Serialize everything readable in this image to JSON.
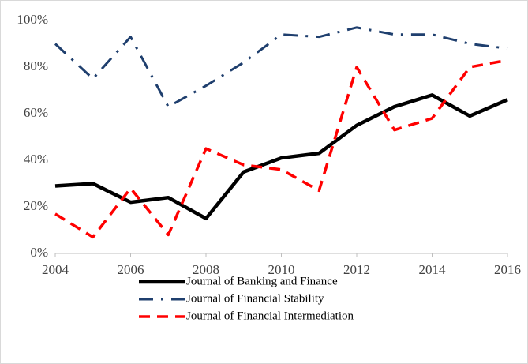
{
  "chart_data": {
    "type": "line",
    "x": [
      2004,
      2005,
      2006,
      2007,
      2008,
      2009,
      2010,
      2011,
      2012,
      2013,
      2014,
      2015,
      2016
    ],
    "series": [
      {
        "name": "Journal of Banking and Finance",
        "color": "#000000",
        "values": [
          29,
          30,
          22,
          24,
          15,
          35,
          41,
          43,
          55,
          63,
          68,
          59,
          66
        ]
      },
      {
        "name": "Journal of Financial Stability",
        "color": "#1f3f6e",
        "values": [
          90,
          75,
          93,
          63,
          72,
          82,
          94,
          93,
          97,
          94,
          94,
          90,
          88
        ]
      },
      {
        "name": "Journal of Financial Intermediation",
        "color": "#ff0000",
        "values": [
          17,
          7,
          28,
          8,
          45,
          38,
          36,
          27,
          80,
          53,
          58,
          80,
          83
        ]
      }
    ],
    "xlim": [
      2004,
      2016
    ],
    "xticks": [
      2004,
      2006,
      2008,
      2010,
      2012,
      2014,
      2016
    ],
    "ylim": [
      0,
      100
    ],
    "yticks": [
      {
        "value": 0,
        "label": "0%"
      },
      {
        "value": 20,
        "label": "20%"
      },
      {
        "value": 40,
        "label": "40%"
      },
      {
        "value": 60,
        "label": "60%"
      },
      {
        "value": 80,
        "label": "80%"
      },
      {
        "value": 100,
        "label": "100%"
      }
    ],
    "grid": false,
    "legend": "bottom"
  }
}
